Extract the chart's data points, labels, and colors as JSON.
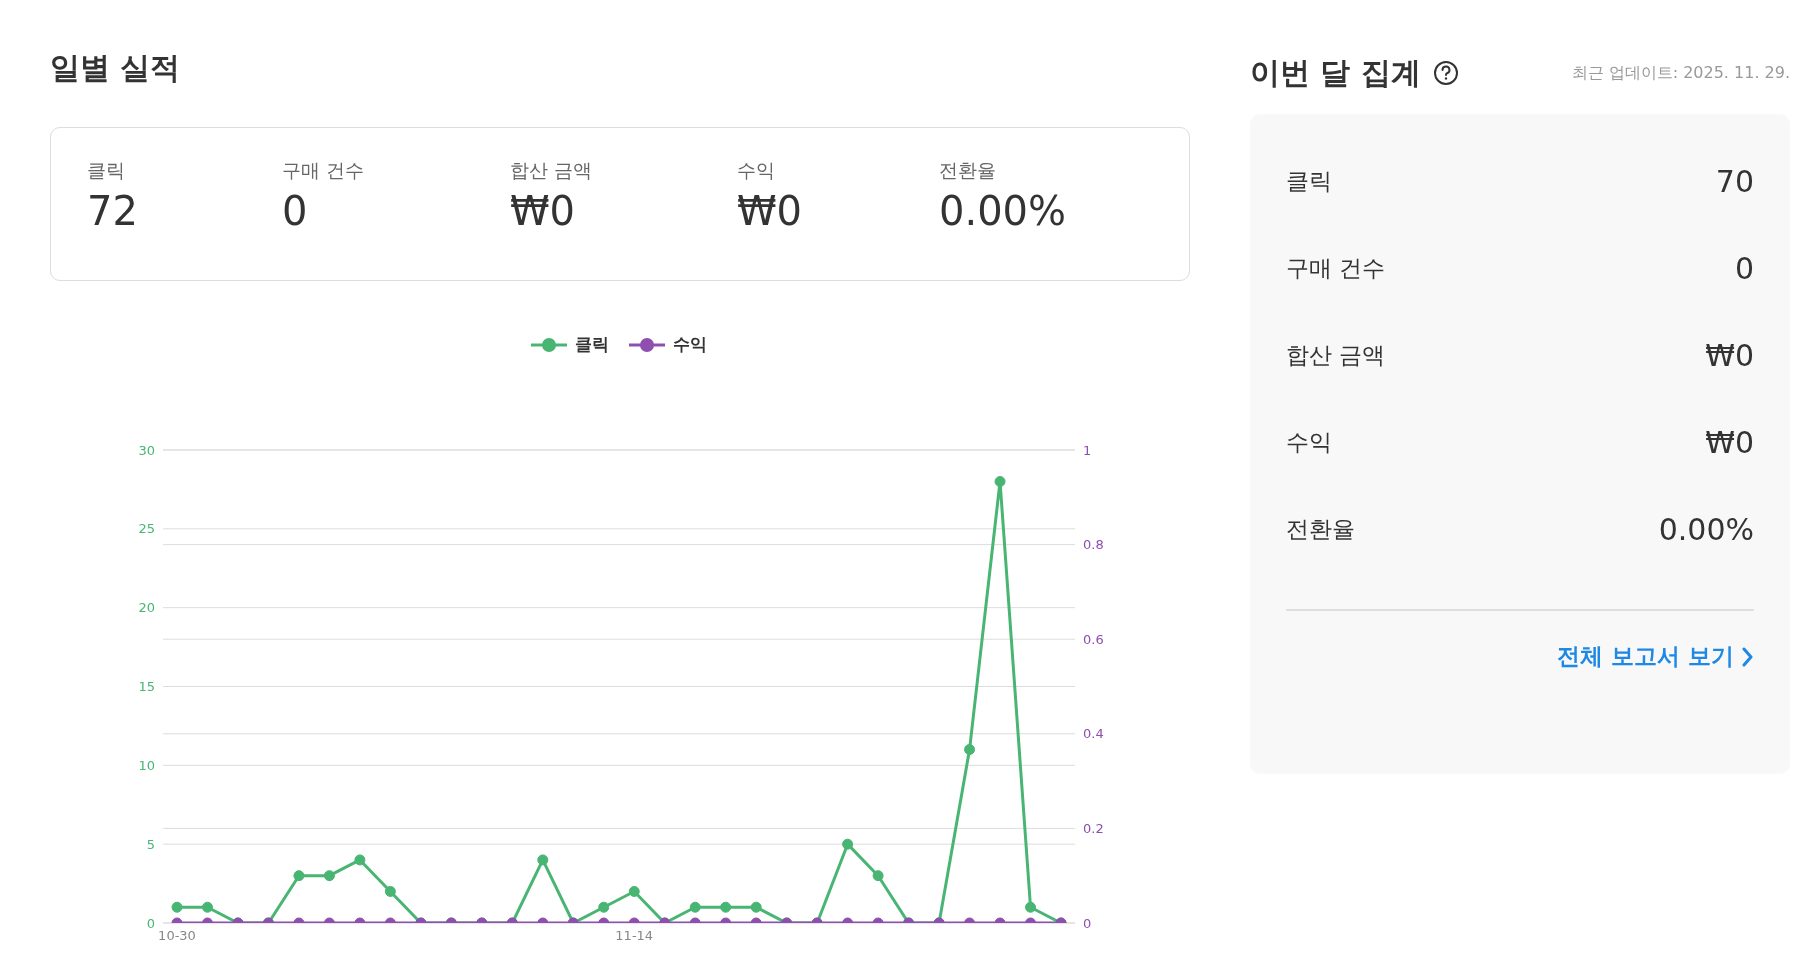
{
  "chart_data": [
    {
      "type": "other",
      "title": "일별 실적",
      "annotations": [
        "클릭",
        "72",
        "구매 건수",
        "0",
        "합산 금액",
        "₩0",
        "수익",
        "₩0",
        "전환율",
        "0.00%"
      ]
    },
    {
      "type": "line",
      "categories": [
        "10-30",
        null,
        null,
        null,
        null,
        null,
        null,
        null,
        null,
        null,
        null,
        null,
        null,
        null,
        null,
        "11-14",
        null,
        null,
        null,
        null,
        null,
        null,
        null,
        null,
        null,
        null,
        null,
        null,
        null,
        null
      ],
      "series": [
        {
          "name": "클릭",
          "color": "#48b573",
          "values": [
            1,
            1,
            0,
            0,
            3,
            3,
            4,
            2,
            0,
            0,
            0,
            0,
            4,
            0,
            1,
            2,
            0,
            1,
            1,
            1,
            0,
            0,
            5,
            3,
            0,
            0,
            11,
            28,
            1,
            0
          ]
        },
        {
          "name": "수익",
          "color": "#8e4fae",
          "axis": "y2",
          "values": [
            0,
            0,
            0,
            0,
            0,
            0,
            0,
            0,
            0,
            0,
            0,
            0,
            0,
            0,
            0,
            0,
            0,
            0,
            0,
            0,
            0,
            0,
            0,
            0,
            0,
            0,
            0,
            0,
            0,
            0
          ]
        }
      ],
      "ylim": [
        0,
        30
      ],
      "yticks": [
        0,
        5,
        10,
        15,
        20,
        25,
        30
      ],
      "y2lim": [
        0,
        1
      ],
      "y2ticks": [
        0,
        0.2,
        0.4,
        0.6,
        0.8,
        1
      ],
      "grid": "y",
      "legend": "top",
      "marker": "circle"
    },
    {
      "type": "other",
      "title": "이번 달 집계",
      "subtitle": "최근 업데이트: 2025. 11. 29.",
      "annotations": [
        "클릭",
        "70",
        "구매 건수",
        "0",
        "합산 금액",
        "₩0",
        "수익",
        "₩0",
        "전환율",
        "0.00%",
        "전체 보고서 보기"
      ]
    }
  ]
}
